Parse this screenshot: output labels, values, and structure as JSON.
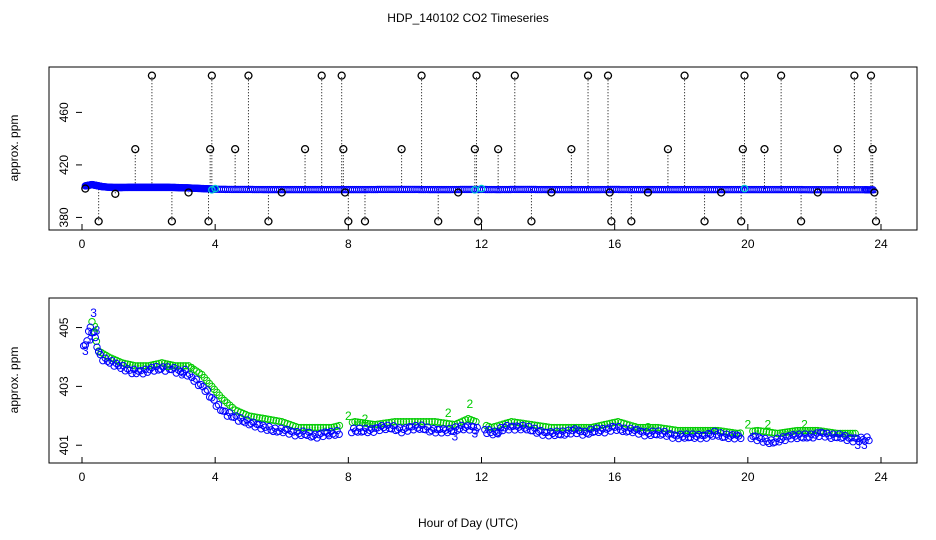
{
  "title": "HDP_140102  CO2 Timeseries",
  "xlabel": "Hour of Day (UTC)",
  "colors": {
    "raw_outlier": "#000000",
    "raw_series": "#0000ff",
    "raw_cyan": "#00cccc",
    "lower_blue": "#0000ff",
    "lower_green": "#00cc00"
  },
  "chart_data": [
    {
      "type": "scatter",
      "panel": "upper",
      "ylabel": "approx. ppm",
      "xlim": [
        0,
        24
      ],
      "ylim": [
        375,
        490
      ],
      "xticks": [
        "0",
        "4",
        "8",
        "12",
        "16",
        "20",
        "24"
      ],
      "yticks": [
        "380",
        "420",
        "460"
      ],
      "grid": false,
      "series": [
        {
          "x": [
            0.1,
            0.2,
            0.3,
            0.4,
            0.5,
            0.6,
            0.8,
            1.0,
            1.2,
            1.4,
            1.6,
            1.8,
            2.0,
            2.2,
            2.4,
            2.6,
            2.8,
            3.0,
            3.2,
            3.4,
            3.6,
            3.8,
            4.0,
            4.5,
            5.0,
            5.5,
            6.0,
            6.5,
            7.0,
            7.5,
            8.0,
            8.5,
            9.0,
            9.5,
            10.0,
            10.5,
            11.0,
            11.5,
            12.0,
            12.5,
            13.0,
            13.5,
            14.0,
            14.5,
            15.0,
            15.5,
            16.0,
            16.5,
            17.0,
            17.5,
            18.0,
            18.5,
            19.0,
            19.5,
            20.0,
            20.5,
            21.0,
            21.5,
            22.0,
            22.5,
            23.0,
            23.5,
            23.8
          ],
          "y": [
            404,
            404.5,
            405,
            404.5,
            404,
            403.5,
            403,
            402.8,
            402.8,
            402.9,
            402.9,
            402.9,
            402.9,
            402.9,
            402.9,
            402.9,
            402.8,
            402.6,
            402.5,
            402.2,
            402,
            401.8,
            401.5,
            401.3,
            401.3,
            401.2,
            401.2,
            401.2,
            401.2,
            401.2,
            401.2,
            401.2,
            401.3,
            401.3,
            401.3,
            401.2,
            401.2,
            401.3,
            401.3,
            401.2,
            401.3,
            401.3,
            401.2,
            401.2,
            401.2,
            401.2,
            401.3,
            401.2,
            401.2,
            401.2,
            401.2,
            401.2,
            401.2,
            401.2,
            401.2,
            401.2,
            401.2,
            401.2,
            401.1,
            401.1,
            401.1,
            401.1,
            401.0
          ]
        },
        {
          "x": [
            0.1,
            0.5,
            1.0,
            1.6,
            2.1,
            2.7,
            3.2,
            3.8,
            3.85,
            3.9,
            4.6,
            5.0,
            5.6,
            6.0,
            6.7,
            7.2,
            7.8,
            7.85,
            7.9,
            8.0,
            8.5,
            9.6,
            10.2,
            10.7,
            11.3,
            11.8,
            11.85,
            11.9,
            12.5,
            13.0,
            13.5,
            14.1,
            14.7,
            15.2,
            15.8,
            15.85,
            15.9,
            16.5,
            17.0,
            17.6,
            18.1,
            18.7,
            19.2,
            19.8,
            19.85,
            19.9,
            20.5,
            21.0,
            21.6,
            22.1,
            22.7,
            23.2,
            23.7,
            23.75,
            23.8,
            23.85
          ],
          "y": [
            402,
            377,
            398,
            432,
            488,
            377,
            399,
            377,
            432,
            488,
            432,
            488,
            377,
            399,
            432,
            488,
            488,
            432,
            399,
            377,
            377,
            432,
            488,
            377,
            399,
            432,
            488,
            377,
            432,
            488,
            377,
            399,
            432,
            488,
            488,
            399,
            377,
            377,
            399,
            432,
            488,
            377,
            399,
            377,
            432,
            488,
            432,
            488,
            377,
            399,
            432,
            488,
            488,
            432,
            399,
            377
          ]
        },
        {
          "x": [
            3.9,
            4.0,
            11.8,
            12.0,
            19.9
          ],
          "y": [
            401,
            402,
            401,
            402,
            402
          ]
        }
      ]
    },
    {
      "type": "scatter",
      "panel": "lower",
      "ylabel": "approx. ppm",
      "xlim": [
        0,
        24
      ],
      "ylim": [
        400.6,
        405.8
      ],
      "xticks": [
        "0",
        "4",
        "8",
        "12",
        "16",
        "20",
        "24"
      ],
      "yticks": [
        "401",
        "403",
        "405"
      ],
      "grid": false,
      "series": [
        {
          "marker": "o",
          "x": [
            0.05,
            0.15,
            0.25,
            0.35,
            0.45,
            0.55,
            0.7,
            0.9,
            1.1,
            1.3,
            1.5,
            1.7,
            1.9,
            2.1,
            2.3,
            2.5,
            2.7,
            2.9,
            3.1,
            3.3,
            3.5,
            3.7,
            3.9,
            4.1,
            4.3,
            4.5,
            4.7,
            4.9,
            5.2,
            5.5,
            5.8,
            6.1,
            6.4,
            6.7,
            7.0,
            7.3,
            7.6,
            8.1,
            8.4,
            8.7,
            9.0,
            9.3,
            9.6,
            9.9,
            10.2,
            10.5,
            10.8,
            11.1,
            11.4,
            11.7,
            12.1,
            12.4,
            12.7,
            13.0,
            13.3,
            13.6,
            13.9,
            14.2,
            14.5,
            14.8,
            15.1,
            15.4,
            15.7,
            16.0,
            16.3,
            16.6,
            16.9,
            17.2,
            17.5,
            17.8,
            18.1,
            18.4,
            18.7,
            19.0,
            19.3,
            19.6,
            20.1,
            20.4,
            20.7,
            21.0,
            21.3,
            21.6,
            21.9,
            22.2,
            22.5,
            22.8,
            23.1,
            23.4,
            23.7
          ],
          "y": [
            404.3,
            404.6,
            405.0,
            404.8,
            404.4,
            404.0,
            403.9,
            403.8,
            403.7,
            403.6,
            403.5,
            403.5,
            403.5,
            403.6,
            403.6,
            403.6,
            403.6,
            403.5,
            403.5,
            403.3,
            403.1,
            402.9,
            402.6,
            402.3,
            402.1,
            402.0,
            401.9,
            401.8,
            401.7,
            401.6,
            401.5,
            401.5,
            401.4,
            401.4,
            401.3,
            401.4,
            401.4,
            401.5,
            401.5,
            401.5,
            401.6,
            401.6,
            401.5,
            401.6,
            401.6,
            401.5,
            401.5,
            401.5,
            401.6,
            401.6,
            401.5,
            401.4,
            401.6,
            401.6,
            401.6,
            401.5,
            401.4,
            401.4,
            401.4,
            401.5,
            401.4,
            401.5,
            401.5,
            401.6,
            401.5,
            401.5,
            401.4,
            401.4,
            401.4,
            401.3,
            401.3,
            401.3,
            401.3,
            401.4,
            401.3,
            401.3,
            401.3,
            401.2,
            401.1,
            401.2,
            401.3,
            401.3,
            401.3,
            401.4,
            401.3,
            401.3,
            401.2,
            401.2,
            401.2
          ]
        },
        {
          "marker": "o",
          "x": [
            0.3,
            0.5,
            0.8,
            1.2,
            1.6,
            2.0,
            2.4,
            2.8,
            3.2,
            3.6,
            4.2,
            4.6,
            5.0,
            5.5,
            6.0,
            6.5,
            7.0,
            7.5,
            8.2,
            8.8,
            9.4,
            10.0,
            10.6,
            11.2,
            11.6,
            12.3,
            12.9,
            13.5,
            14.1,
            14.7,
            15.3,
            16.1,
            16.7,
            17.3,
            17.9,
            18.5,
            19.1,
            19.7,
            20.3,
            20.9,
            21.5,
            22.1,
            22.7,
            23.3
          ],
          "y": [
            405.2,
            404.2,
            404.0,
            403.8,
            403.7,
            403.7,
            403.8,
            403.7,
            403.7,
            403.4,
            402.6,
            402.2,
            402.0,
            401.9,
            401.8,
            401.6,
            401.6,
            401.6,
            401.8,
            401.7,
            401.8,
            401.8,
            401.8,
            401.7,
            401.9,
            401.6,
            401.8,
            401.7,
            401.6,
            401.6,
            401.6,
            401.8,
            401.6,
            401.6,
            401.5,
            401.5,
            401.5,
            401.4,
            401.5,
            401.4,
            401.5,
            401.5,
            401.4,
            401.4
          ]
        },
        {
          "marker": "3",
          "x": [
            0.1,
            0.25,
            0.35,
            0.45,
            3.0,
            7.4,
            11.2,
            11.8,
            12.5,
            23.3,
            23.5
          ],
          "y": [
            404.2,
            404.6,
            405.5,
            404.9,
            403.4,
            401.4,
            401.3,
            401.4,
            401.4,
            401.0,
            401.0
          ]
        },
        {
          "marker": "2",
          "x": [
            0.4,
            2.6,
            3.3,
            8.0,
            8.5,
            11.0,
            11.65,
            17.0,
            20.0,
            20.6,
            21.7
          ],
          "y": [
            405.0,
            403.7,
            403.6,
            402.0,
            401.9,
            402.1,
            402.4,
            401.6,
            401.7,
            401.7,
            401.7
          ]
        }
      ]
    }
  ]
}
